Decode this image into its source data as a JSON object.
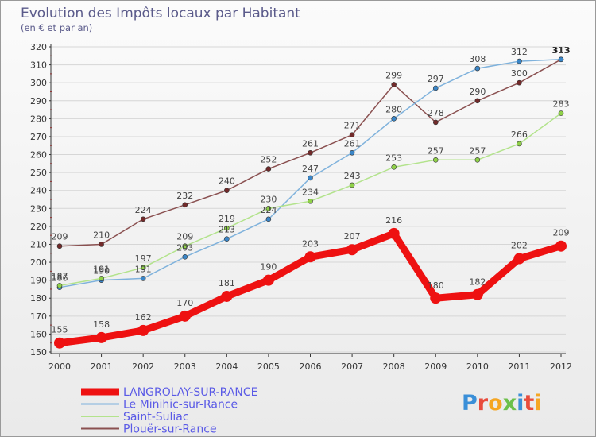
{
  "title": "Evolution des Impôts locaux par Habitant",
  "subtitle": "(en € et par an)",
  "logo": {
    "text": "Proxiti"
  },
  "colors": {
    "title": "#5a5a8a",
    "grid": "#d6d6d6",
    "axis": "#333333",
    "legend_text": "#5a5ae6"
  },
  "chart_data": {
    "type": "line",
    "title": "Evolution des Impôts locaux par Habitant",
    "subtitle": "(en € et par an)",
    "xlabel": "",
    "ylabel": "",
    "x": [
      "2000",
      "2001",
      "2002",
      "2003",
      "2004",
      "2005",
      "2006",
      "2007",
      "2008",
      "2009",
      "2010",
      "2011",
      "2012"
    ],
    "ylim": [
      150,
      320
    ],
    "yticks": [
      150,
      160,
      170,
      180,
      190,
      200,
      210,
      220,
      230,
      240,
      250,
      260,
      270,
      280,
      290,
      300,
      310,
      320
    ],
    "grid": true,
    "legend_position": "bottom-left",
    "series": [
      {
        "name": "Plouër-sur-Rance",
        "color": "#722a2a",
        "line_color": "#8a5050",
        "values": [
          209,
          210,
          224,
          232,
          240,
          252,
          261,
          271,
          299,
          278,
          290,
          300,
          313
        ],
        "labels": [
          "209",
          "210",
          "224",
          "232",
          "240",
          "252",
          "261",
          "271",
          "299",
          "278",
          "290",
          "300",
          "313"
        ]
      },
      {
        "name": "Le Minihic-sur-Rance",
        "color": "#3a86c8",
        "line_color": "#7fb2dc",
        "values": [
          186,
          190,
          191,
          203,
          213,
          224,
          247,
          261,
          280,
          297,
          308,
          312,
          313
        ],
        "labels": [
          "186",
          "190",
          "191",
          "203",
          "213",
          "224",
          "247",
          "261",
          "280",
          "297",
          "308",
          "312",
          "313"
        ]
      },
      {
        "name": "Saint-Suliac",
        "color": "#8fd148",
        "line_color": "#b3e38c",
        "values": [
          187,
          191,
          197,
          209,
          219,
          230,
          234,
          243,
          253,
          257,
          257,
          266,
          283
        ],
        "labels": [
          "187",
          "191",
          "197",
          "209",
          "219",
          "230",
          "234",
          "243",
          "253",
          "257",
          "257",
          "266",
          "283"
        ]
      },
      {
        "name": "LANGROLAY-SUR-RANCE",
        "color": "#ee1111",
        "line_color": "#ee1111",
        "values": [
          155,
          158,
          162,
          170,
          181,
          190,
          203,
          207,
          216,
          180,
          182,
          202,
          209
        ],
        "labels": [
          "155",
          "158",
          "162",
          "170",
          "181",
          "190",
          "203",
          "207",
          "216",
          "180",
          "182",
          "202",
          "209"
        ]
      }
    ],
    "legend": [
      "LANGROLAY-SUR-RANCE",
      "Le Minihic-sur-Rance",
      "Saint-Suliac",
      "Plouër-sur-Rance"
    ]
  }
}
